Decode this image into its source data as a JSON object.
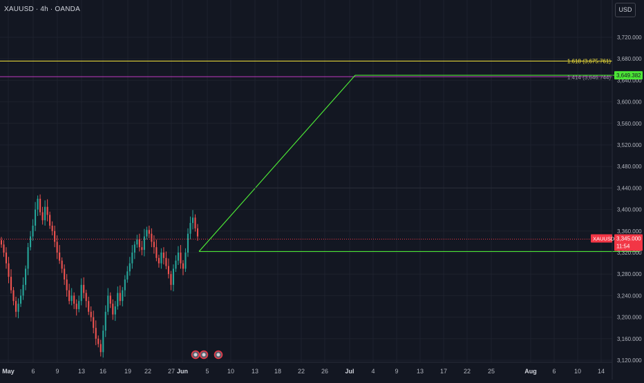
{
  "header": {
    "symbol_title": "XAUUSD · 4h · OANDA"
  },
  "axis": {
    "currency_button": "USD",
    "price_ticks": [
      "3,720.000",
      "3,680.000",
      "3,640.000",
      "3,600.000",
      "3,560.000",
      "3,520.000",
      "3,480.000",
      "3,440.000",
      "3,400.000",
      "3,360.000",
      "3,320.000",
      "3,280.000",
      "3,240.000",
      "3,200.000",
      "3,160.000",
      "3,120.000"
    ],
    "price_tick_values": [
      3720,
      3680,
      3640,
      3600,
      3560,
      3520,
      3480,
      3440,
      3400,
      3360,
      3320,
      3280,
      3240,
      3200,
      3160,
      3120
    ],
    "time_ticks": [
      "May",
      "6",
      "9",
      "13",
      "16",
      "19",
      "22",
      "27",
      "Jun",
      "5",
      "10",
      "13",
      "18",
      "22",
      "26",
      "Jul",
      "4",
      "9",
      "13",
      "17",
      "22",
      "25",
      "Aug",
      "6",
      "10",
      "14"
    ],
    "month_ticks": [
      "May",
      "Jun",
      "Jul",
      "Aug"
    ]
  },
  "levels": {
    "fib_1618_label": "1.618 (3,675.761)",
    "fib_1618_value": 3675.761,
    "fib_1414_label": "1.414 (3,646.744)",
    "fib_1414_value": 3646.744,
    "target_price_label": "3,649.382",
    "target_price_value": 3649.382,
    "current_symbol_label": "XAUUSD",
    "current_price_label": "3,345.000",
    "current_price_value": 3345.0,
    "countdown_label": "11:54",
    "support_value": 3322.0
  },
  "event_markers": [
    "earnings-flag-icon",
    "dividend-flag-icon",
    "event-flag-icon"
  ],
  "colors": {
    "background": "#131722",
    "grid": "#1e222d",
    "up_candle": "#26a69a",
    "down_candle": "#ef5350",
    "fib_1618": "#f5e53b",
    "fib_1414": "#c239c2",
    "projection": "#4ce636",
    "price_badge": "#f23645",
    "target_badge": "#4ce636"
  }
}
